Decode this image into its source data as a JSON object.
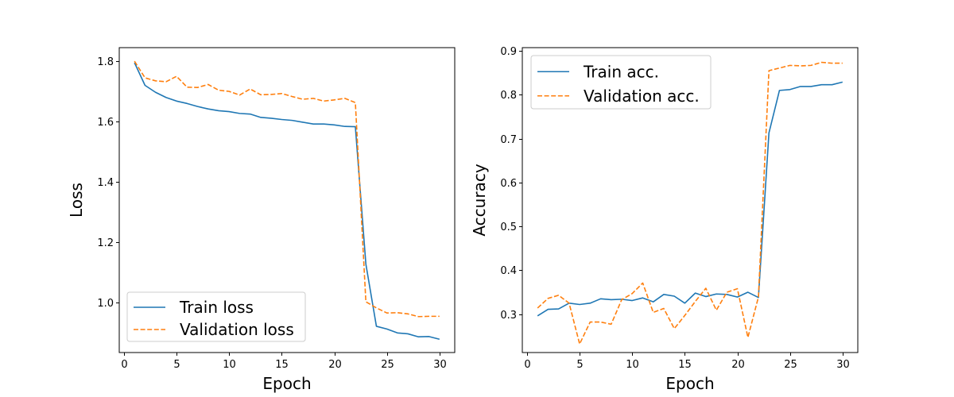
{
  "chart_data": [
    {
      "type": "line",
      "xlabel": "Epoch",
      "ylabel": "Loss",
      "xlim": [
        -0.45,
        31.45
      ],
      "ylim": [
        0.835,
        1.845
      ],
      "xticks": [
        0,
        5,
        10,
        15,
        20,
        25,
        30
      ],
      "yticks": [
        1.0,
        1.2,
        1.4,
        1.6,
        1.8
      ],
      "ytick_labels": [
        "1.0",
        "1.2",
        "1.4",
        "1.6",
        "1.8"
      ],
      "legend_position": "lower-left",
      "x": [
        1,
        2,
        3,
        4,
        5,
        6,
        7,
        8,
        9,
        10,
        11,
        12,
        13,
        14,
        15,
        16,
        17,
        18,
        19,
        20,
        21,
        22,
        23,
        24,
        25,
        26,
        27,
        28,
        29,
        30
      ],
      "series": [
        {
          "name": "Train loss",
          "color": "#1f77b4",
          "dash": "solid",
          "values": [
            1.795,
            1.72,
            1.697,
            1.68,
            1.668,
            1.66,
            1.65,
            1.642,
            1.636,
            1.633,
            1.627,
            1.625,
            1.614,
            1.611,
            1.607,
            1.604,
            1.598,
            1.592,
            1.592,
            1.589,
            1.584,
            1.583,
            1.128,
            0.922,
            0.913,
            0.9,
            0.897,
            0.887,
            0.888,
            0.879
          ]
        },
        {
          "name": "Validation loss",
          "color": "#ff7f0e",
          "dash": "dashed",
          "values": [
            1.8,
            1.745,
            1.735,
            1.732,
            1.75,
            1.714,
            1.713,
            1.723,
            1.704,
            1.7,
            1.688,
            1.708,
            1.689,
            1.69,
            1.693,
            1.683,
            1.674,
            1.677,
            1.668,
            1.672,
            1.677,
            1.663,
            1.003,
            0.983,
            0.966,
            0.967,
            0.963,
            0.954,
            0.955,
            0.955
          ]
        }
      ]
    },
    {
      "type": "line",
      "xlabel": "Epoch",
      "ylabel": "Accuracy",
      "xlim": [
        -0.45,
        31.45
      ],
      "ylim": [
        0.2125,
        0.9075
      ],
      "xticks": [
        0,
        5,
        10,
        15,
        20,
        25,
        30
      ],
      "yticks": [
        0.3,
        0.4,
        0.5,
        0.6,
        0.7,
        0.8,
        0.9
      ],
      "ytick_labels": [
        "0.3",
        "0.4",
        "0.5",
        "0.6",
        "0.7",
        "0.8",
        "0.9"
      ],
      "legend_position": "upper-left",
      "x": [
        1,
        2,
        3,
        4,
        5,
        6,
        7,
        8,
        9,
        10,
        11,
        12,
        13,
        14,
        15,
        16,
        17,
        18,
        19,
        20,
        21,
        22,
        23,
        24,
        25,
        26,
        27,
        28,
        29,
        30
      ],
      "series": [
        {
          "name": "Train acc.",
          "color": "#1f77b4",
          "dash": "solid",
          "values": [
            0.296,
            0.311,
            0.312,
            0.325,
            0.322,
            0.325,
            0.335,
            0.333,
            0.334,
            0.331,
            0.337,
            0.328,
            0.345,
            0.341,
            0.325,
            0.348,
            0.34,
            0.346,
            0.345,
            0.339,
            0.35,
            0.338,
            0.713,
            0.81,
            0.812,
            0.819,
            0.819,
            0.823,
            0.823,
            0.829
          ]
        },
        {
          "name": "Validation acc.",
          "color": "#ff7f0e",
          "dash": "dashed",
          "values": [
            0.314,
            0.336,
            0.343,
            0.325,
            0.232,
            0.282,
            0.282,
            0.277,
            0.333,
            0.347,
            0.371,
            0.304,
            0.313,
            0.267,
            0.297,
            0.329,
            0.359,
            0.309,
            0.35,
            0.358,
            0.247,
            0.339,
            0.855,
            0.861,
            0.867,
            0.866,
            0.867,
            0.874,
            0.872,
            0.872
          ]
        }
      ]
    }
  ]
}
